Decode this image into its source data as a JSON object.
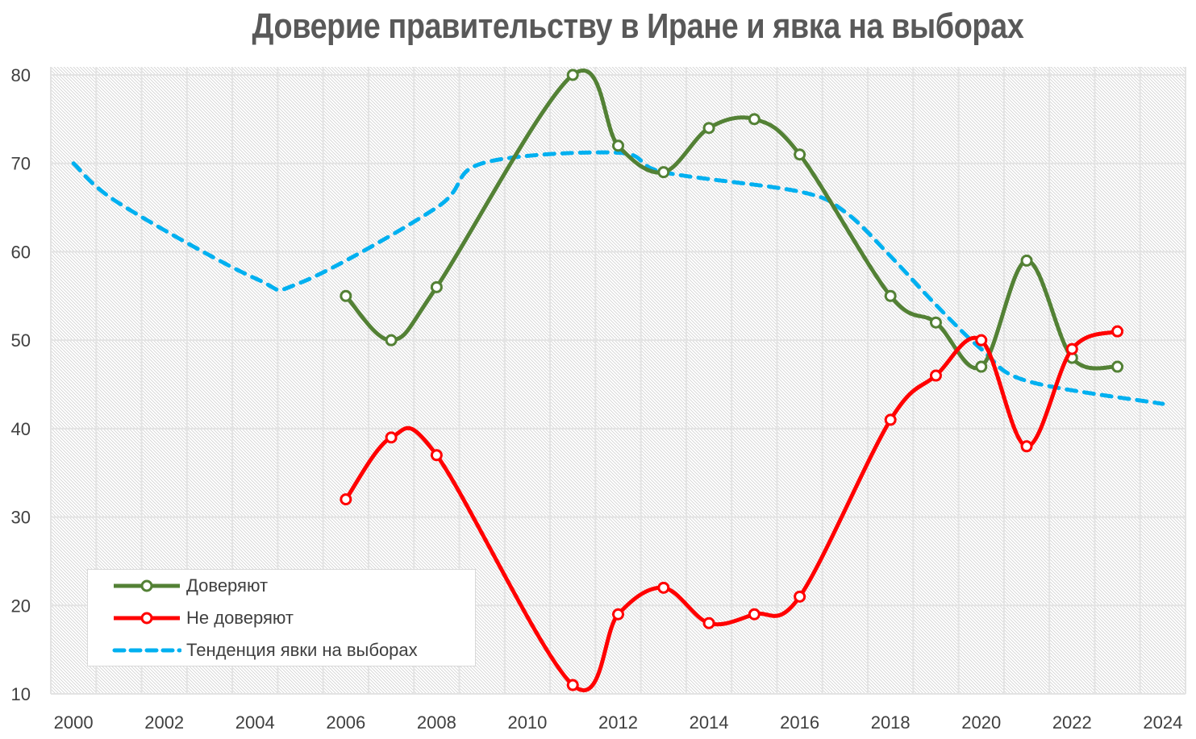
{
  "chart_data": {
    "type": "line",
    "title": "Доверие правительству в Иране и явка на выборах",
    "xlabel": "",
    "ylabel": "",
    "xlim": [
      1999.5,
      2024.5
    ],
    "ylim": [
      10,
      80
    ],
    "x_ticks": [
      2000,
      2002,
      2004,
      2006,
      2008,
      2010,
      2012,
      2014,
      2016,
      2018,
      2020,
      2022,
      2024
    ],
    "y_ticks": [
      10,
      20,
      30,
      40,
      50,
      60,
      70,
      80
    ],
    "grid": true,
    "legend_position": "bottom-left",
    "series": [
      {
        "name": "Доверяют",
        "color": "#538135",
        "style": "solid-markers",
        "x": [
          2006,
          2007,
          2008,
          2011,
          2012,
          2013,
          2014,
          2015,
          2016,
          2018,
          2019,
          2020,
          2021,
          2022,
          2023
        ],
        "values": [
          55,
          50,
          56,
          80,
          72,
          69,
          74,
          75,
          71,
          55,
          52,
          47,
          59,
          48,
          47
        ]
      },
      {
        "name": "Не доверяют",
        "color": "#ff0000",
        "style": "solid-markers",
        "x": [
          2006,
          2007,
          2008,
          2011,
          2012,
          2013,
          2014,
          2015,
          2016,
          2018,
          2019,
          2020,
          2021,
          2022,
          2023
        ],
        "values": [
          32,
          39,
          37,
          11,
          19,
          22,
          18,
          19,
          21,
          41,
          46,
          50,
          38,
          49,
          51
        ]
      },
      {
        "name": "Тенденция явки на выборах",
        "color": "#00b0f0",
        "style": "dashed",
        "x": [
          2000,
          2001,
          2004,
          2005,
          2008,
          2009,
          2012,
          2013,
          2016,
          2017,
          2018,
          2019,
          2020,
          2021,
          2024
        ],
        "values": [
          70,
          65.5,
          57,
          56.5,
          65,
          70,
          71.2,
          69,
          66.8,
          64.5,
          59.5,
          54,
          49,
          45.4,
          42.8
        ]
      }
    ]
  }
}
